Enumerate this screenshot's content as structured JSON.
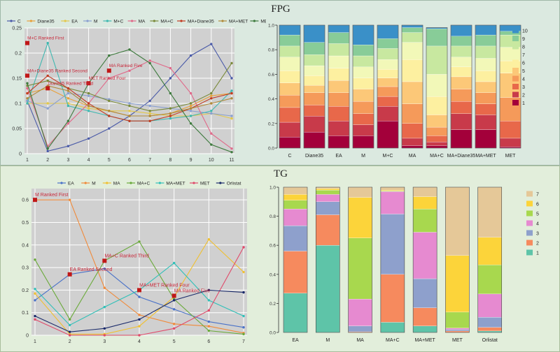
{
  "titles": {
    "top": "FPG",
    "bottom": "TG"
  },
  "colors": {
    "fpg_lines": {
      "C": "#4a5aa8",
      "Diane35": "#e8a03a",
      "EA": "#e3c84a",
      "M": "#8aa0d0",
      "M+C": "#3fb8b0",
      "MA": "#e06a8a",
      "MA+C": "#7a8a3a",
      "MA+Diane35": "#c23b22",
      "MA+MET": "#b08a3a",
      "MET": "#3d7a3d"
    },
    "fpg_stack": [
      "#a3003a",
      "#c83a4a",
      "#e8684a",
      "#f59a5a",
      "#fcc878",
      "#fdf0a0",
      "#f2f8b8",
      "#c8e8a0",
      "#88cc98",
      "#3a90c8"
    ],
    "tg_lines": {
      "EA": "#4a72c8",
      "M": "#f08a3a",
      "MA": "#f0c030",
      "MA+C": "#6aaa3a",
      "MA+MET": "#30c0b8",
      "MET": "#e04a6a",
      "Orlistat": "#1a2a6a"
    },
    "tg_stack": [
      "#5ec4a8",
      "#f68a5e",
      "#8ea0cc",
      "#e68ad0",
      "#a8d84e",
      "#fcd43a",
      "#e5c898"
    ]
  },
  "chart_data": [
    {
      "id": "fpg-line",
      "type": "line",
      "x": [
        1,
        2,
        3,
        4,
        5,
        6,
        7,
        8,
        9,
        10,
        11
      ],
      "ylim": [
        0,
        0.25
      ],
      "yticks": [
        "0",
        "0.05",
        "0.1",
        "0.15",
        "0.2",
        "0.25"
      ],
      "legend": [
        "C",
        "Diane35",
        "EA",
        "M",
        "M+C",
        "MA",
        "MA+C",
        "MA+Diane35",
        "MA+MET",
        "MET"
      ],
      "series": [
        {
          "name": "C",
          "values": [
            0.105,
            0.005,
            0.015,
            0.03,
            0.05,
            0.075,
            0.105,
            0.15,
            0.195,
            0.218,
            0.15
          ]
        },
        {
          "name": "Diane35",
          "values": [
            0.12,
            0.13,
            0.11,
            0.095,
            0.085,
            0.075,
            0.075,
            0.08,
            0.095,
            0.115,
            0.12
          ]
        },
        {
          "name": "EA",
          "values": [
            0.1,
            0.1,
            0.1,
            0.09,
            0.085,
            0.085,
            0.08,
            0.075,
            0.075,
            0.08,
            0.07
          ]
        },
        {
          "name": "M",
          "values": [
            0.105,
            0.09,
            0.12,
            0.115,
            0.108,
            0.1,
            0.095,
            0.09,
            0.085,
            0.08,
            0.075
          ]
        },
        {
          "name": "M+C",
          "values": [
            0.1,
            0.22,
            0.095,
            0.085,
            0.075,
            0.065,
            0.065,
            0.07,
            0.075,
            0.085,
            0.125
          ]
        },
        {
          "name": "MA",
          "values": [
            0.13,
            0.015,
            0.06,
            0.1,
            0.15,
            0.165,
            0.185,
            0.17,
            0.12,
            0.04,
            0.01
          ]
        },
        {
          "name": "MA+C",
          "values": [
            0.135,
            0.145,
            0.13,
            0.12,
            0.105,
            0.095,
            0.085,
            0.09,
            0.1,
            0.12,
            0.18
          ]
        },
        {
          "name": "MA+Diane35",
          "values": [
            0.12,
            0.155,
            0.13,
            0.1,
            0.075,
            0.065,
            0.065,
            0.075,
            0.09,
            0.11,
            0.12
          ]
        },
        {
          "name": "MA+MET",
          "values": [
            0.11,
            0.135,
            0.125,
            0.095,
            0.085,
            0.075,
            0.075,
            0.08,
            0.09,
            0.1,
            0.11
          ]
        },
        {
          "name": "MET",
          "values": [
            0.14,
            0.01,
            0.065,
            0.14,
            0.195,
            0.207,
            0.18,
            0.12,
            0.06,
            0.018,
            0.003
          ]
        }
      ],
      "annotations": [
        {
          "text": "M+C Ranked First",
          "x": 1,
          "y": 0.22
        },
        {
          "text": "MA+Diane35 Ranked Second",
          "x": 1,
          "y": 0.155
        },
        {
          "text": "MA Ranked Five",
          "x": 5,
          "y": 0.165
        },
        {
          "text": "MET Ranked Four",
          "x": 4,
          "y": 0.14
        },
        {
          "text": "Diane35 Ranked Third",
          "x": 2,
          "y": 0.13
        }
      ]
    },
    {
      "id": "fpg-stack",
      "type": "bar",
      "stacked": true,
      "categories": [
        "C",
        "Diane35",
        "EA",
        "M",
        "M+C",
        "MA",
        "MA+C",
        "MA+Diane35",
        "MA+MET",
        "MET"
      ],
      "ylim": [
        0,
        1
      ],
      "yticks": [
        "0.0",
        "0.2",
        "0.4",
        "0.6",
        "0.8",
        "1.0"
      ],
      "legend": [
        "10",
        "9",
        "8",
        "7",
        "6",
        "5",
        "4",
        "3",
        "2",
        "1"
      ],
      "series": [
        {
          "name": "1",
          "values": [
            0.09,
            0.13,
            0.1,
            0.1,
            0.22,
            0.02,
            0.02,
            0.15,
            0.15,
            0.01
          ]
        },
        {
          "name": "2",
          "values": [
            0.12,
            0.13,
            0.12,
            0.09,
            0.12,
            0.06,
            0.03,
            0.13,
            0.12,
            0.07
          ]
        },
        {
          "name": "3",
          "values": [
            0.12,
            0.09,
            0.12,
            0.09,
            0.08,
            0.12,
            0.05,
            0.1,
            0.09,
            0.14
          ]
        },
        {
          "name": "4",
          "values": [
            0.1,
            0.1,
            0.11,
            0.1,
            0.08,
            0.16,
            0.07,
            0.1,
            0.09,
            0.19
          ]
        },
        {
          "name": "5",
          "values": [
            0.1,
            0.06,
            0.1,
            0.1,
            0.07,
            0.18,
            0.1,
            0.1,
            0.09,
            0.2
          ]
        },
        {
          "name": "6",
          "values": [
            0.1,
            0.08,
            0.1,
            0.09,
            0.07,
            0.18,
            0.15,
            0.08,
            0.09,
            0.1
          ]
        },
        {
          "name": "7",
          "values": [
            0.11,
            0.08,
            0.1,
            0.09,
            0.08,
            0.14,
            0.18,
            0.08,
            0.1,
            0.11
          ]
        },
        {
          "name": "8",
          "values": [
            0.09,
            0.09,
            0.1,
            0.09,
            0.09,
            0.08,
            0.23,
            0.09,
            0.1,
            0.1
          ]
        },
        {
          "name": "9",
          "values": [
            0.09,
            0.1,
            0.09,
            0.09,
            0.08,
            0.04,
            0.14,
            0.08,
            0.09,
            0.03
          ]
        },
        {
          "name": "10",
          "values": [
            0.08,
            0.14,
            0.06,
            0.16,
            0.11,
            0.02,
            0.01,
            0.09,
            0.08,
            0.05
          ]
        }
      ]
    },
    {
      "id": "tg-line",
      "type": "line",
      "x": [
        1,
        2,
        3,
        4,
        5,
        6,
        7
      ],
      "ylim": [
        0,
        0.65
      ],
      "yticks": [
        "0",
        "0.1",
        "0.2",
        "0.3",
        "0.4",
        "0.5",
        "0.6"
      ],
      "legend": [
        "EA",
        "M",
        "MA",
        "MA+C",
        "MA+MET",
        "MET",
        "Orlistat"
      ],
      "series": [
        {
          "name": "EA",
          "values": [
            0.155,
            0.27,
            0.295,
            0.17,
            0.115,
            0.06,
            0.035
          ]
        },
        {
          "name": "M",
          "values": [
            0.6,
            0.6,
            0.21,
            0.09,
            0.05,
            0.04,
            0.01
          ]
        },
        {
          "name": "MA",
          "values": [
            0.185,
            0.005,
            0.005,
            0.04,
            0.17,
            0.425,
            0.28
          ]
        },
        {
          "name": "MA+C",
          "values": [
            0.335,
            0.07,
            0.33,
            0.415,
            0.16,
            0.02,
            0.005
          ]
        },
        {
          "name": "MA+MET",
          "values": [
            0.205,
            0.045,
            0.125,
            0.2,
            0.32,
            0.155,
            0.085
          ]
        },
        {
          "name": "MET",
          "values": [
            0.07,
            0.0,
            0.0,
            0.0,
            0.03,
            0.11,
            0.39
          ]
        },
        {
          "name": "Orlistat",
          "values": [
            0.085,
            0.015,
            0.03,
            0.07,
            0.155,
            0.2,
            0.19
          ]
        }
      ],
      "annotations": [
        {
          "text": "M Ranked First",
          "x": 1,
          "y": 0.6
        },
        {
          "text": "MA+C Ranked Third",
          "x": 3,
          "y": 0.33
        },
        {
          "text": "EA Ranked Second",
          "x": 2,
          "y": 0.27
        },
        {
          "text": "MA+MET Ranked Four",
          "x": 4,
          "y": 0.2
        },
        {
          "text": "MA Ranked Five",
          "x": 5,
          "y": 0.175
        }
      ]
    },
    {
      "id": "tg-stack",
      "type": "bar",
      "stacked": true,
      "categories": [
        "EA",
        "M",
        "MA",
        "MA+C",
        "MA+MET",
        "MET",
        "Orlistat"
      ],
      "ylim": [
        0,
        1
      ],
      "yticks": [
        "0.0",
        "0.2",
        "0.4",
        "0.6",
        "0.8",
        "1.0"
      ],
      "legend": [
        "7",
        "6",
        "5",
        "4",
        "3",
        "2",
        "1"
      ],
      "series": [
        {
          "name": "1",
          "values": [
            0.27,
            0.6,
            0.0,
            0.07,
            0.045,
            0.0,
            0.01
          ]
        },
        {
          "name": "2",
          "values": [
            0.29,
            0.21,
            0.005,
            0.33,
            0.125,
            0.01,
            0.025
          ]
        },
        {
          "name": "3",
          "values": [
            0.175,
            0.09,
            0.04,
            0.415,
            0.2,
            0.01,
            0.07
          ]
        },
        {
          "name": "4",
          "values": [
            0.115,
            0.05,
            0.185,
            0.155,
            0.32,
            0.01,
            0.16
          ]
        },
        {
          "name": "5",
          "values": [
            0.06,
            0.03,
            0.42,
            0.005,
            0.16,
            0.11,
            0.2
          ]
        },
        {
          "name": "6",
          "values": [
            0.04,
            0.01,
            0.28,
            0.005,
            0.085,
            0.39,
            0.19
          ]
        },
        {
          "name": "7",
          "values": [
            0.05,
            0.01,
            0.07,
            0.02,
            0.065,
            0.47,
            0.345
          ]
        }
      ]
    }
  ]
}
